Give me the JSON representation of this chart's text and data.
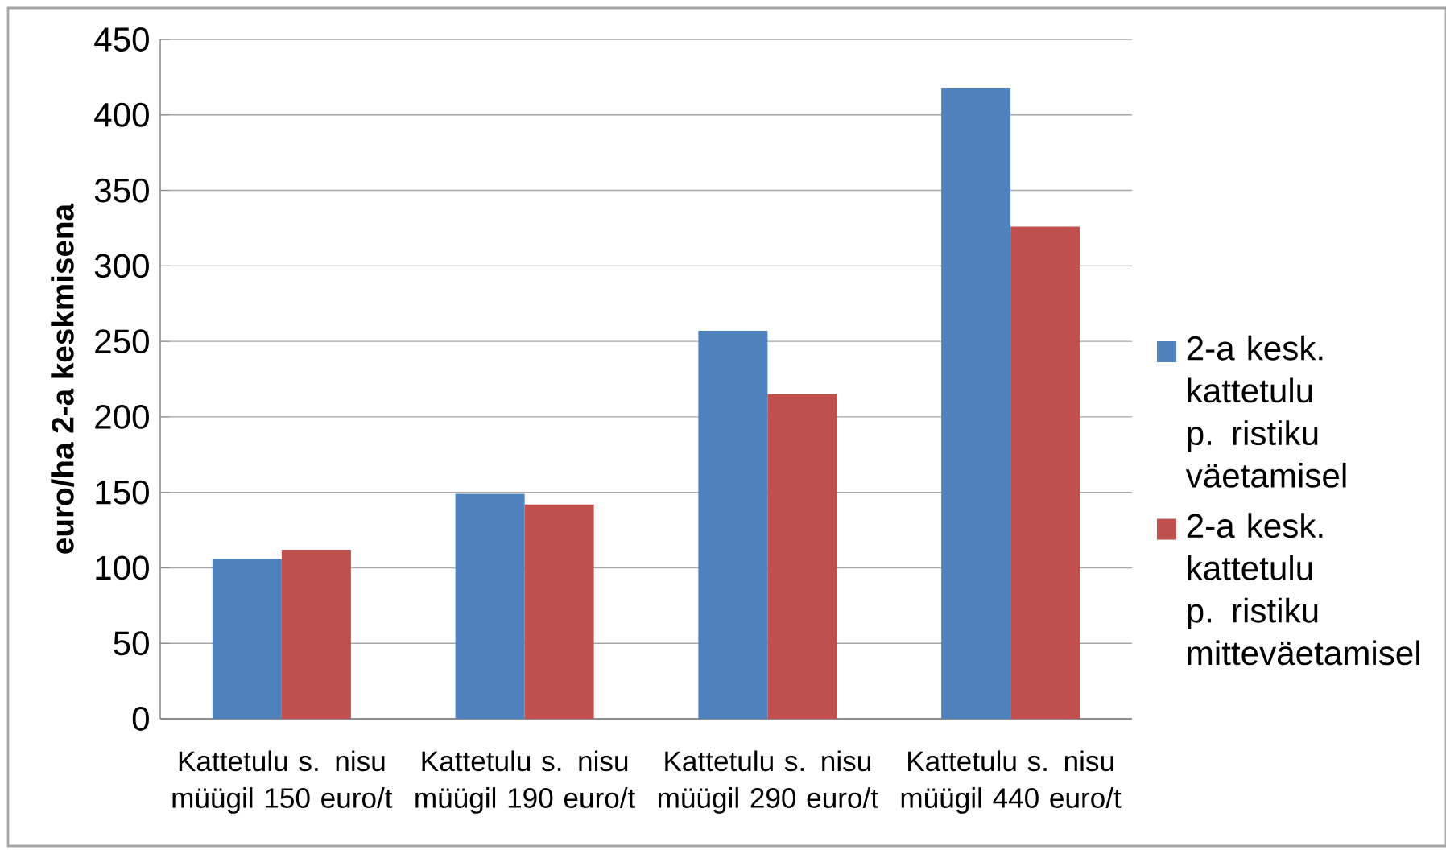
{
  "chart_data": {
    "type": "bar",
    "ylabel": "euro/ha 2-a keskmisena",
    "categories": [
      "Kattetulu s. nisu müügil 150 euro/t",
      "Kattetulu s. nisu müügil 190 euro/t",
      "Kattetulu s. nisu müügil 290 euro/t",
      "Kattetulu s. nisu müügil 440 euro/t"
    ],
    "series": [
      {
        "name": "2-a kesk. kattetulu p. ristiku väetamisel",
        "color": "#4f81bd",
        "values": [
          106,
          149,
          257,
          418
        ]
      },
      {
        "name": "2-a kesk. kattetulu p. ristiku mitteväetamisel",
        "color": "#c0504d",
        "values": [
          112,
          142,
          215,
          326
        ]
      }
    ],
    "ylim": [
      0,
      450
    ],
    "yticks": [
      0,
      50,
      100,
      150,
      200,
      250,
      300,
      350,
      400,
      450
    ],
    "grid": "y",
    "legend": "right"
  }
}
